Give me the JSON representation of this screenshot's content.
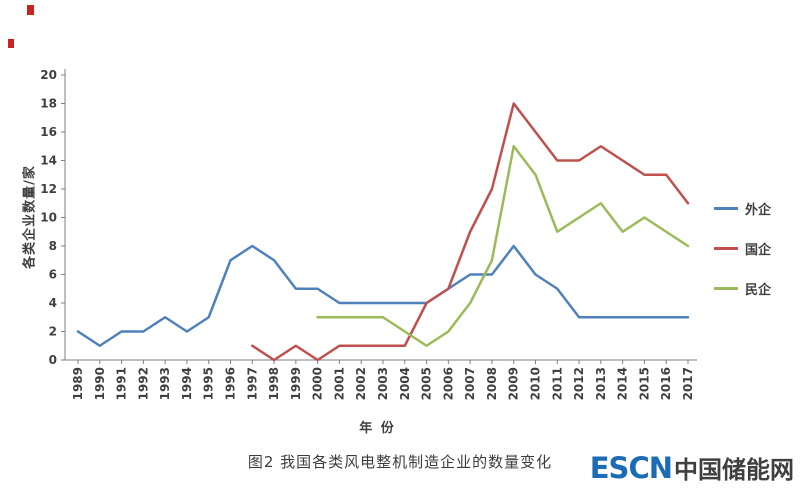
{
  "page": {
    "caption": "图2 我国各类风电整机制造企业的数量变化",
    "logo": {
      "en": "ESCN",
      "cn": "中国储能网",
      "en_color": "#1b6cb5",
      "cn_color": "#3f3f3f"
    }
  },
  "chart_data": {
    "type": "line",
    "title": "图2 我国各类风电整机制造企业的数量变化",
    "xlabel": "年 份",
    "ylabel": "各类企业数量/家",
    "ylim": [
      0,
      20
    ],
    "ytick_step": 2,
    "grid": false,
    "legend_position": "right",
    "axis_color": "#7f7f7f",
    "tick_label_color": "#404040",
    "categories": [
      "1989",
      "1990",
      "1991",
      "1992",
      "1993",
      "1994",
      "1995",
      "1996",
      "1997",
      "1998",
      "1999",
      "2000",
      "2001",
      "2002",
      "2003",
      "2004",
      "2005",
      "2006",
      "2007",
      "2008",
      "2009",
      "2010",
      "2011",
      "2012",
      "2013",
      "2014",
      "2015",
      "2016",
      "2017"
    ],
    "series": [
      {
        "name": "外企",
        "color": "#4F81BD",
        "values": [
          2,
          1,
          2,
          2,
          3,
          2,
          3,
          7,
          8,
          7,
          5,
          5,
          4,
          4,
          4,
          4,
          4,
          5,
          6,
          6,
          8,
          6,
          5,
          3,
          3,
          3,
          3,
          3,
          3
        ]
      },
      {
        "name": "国企",
        "color": "#C0504D",
        "values": [
          null,
          null,
          null,
          null,
          null,
          null,
          null,
          null,
          1,
          0,
          1,
          0,
          1,
          1,
          1,
          1,
          4,
          5,
          9,
          12,
          18,
          16,
          14,
          14,
          15,
          14,
          13,
          13,
          11
        ]
      },
      {
        "name": "民企",
        "color": "#9BBB59",
        "values": [
          null,
          null,
          null,
          null,
          null,
          null,
          null,
          null,
          null,
          null,
          null,
          3,
          3,
          3,
          3,
          2,
          1,
          2,
          4,
          7,
          15,
          13,
          9,
          10,
          11,
          9,
          10,
          9,
          8
        ]
      }
    ]
  }
}
